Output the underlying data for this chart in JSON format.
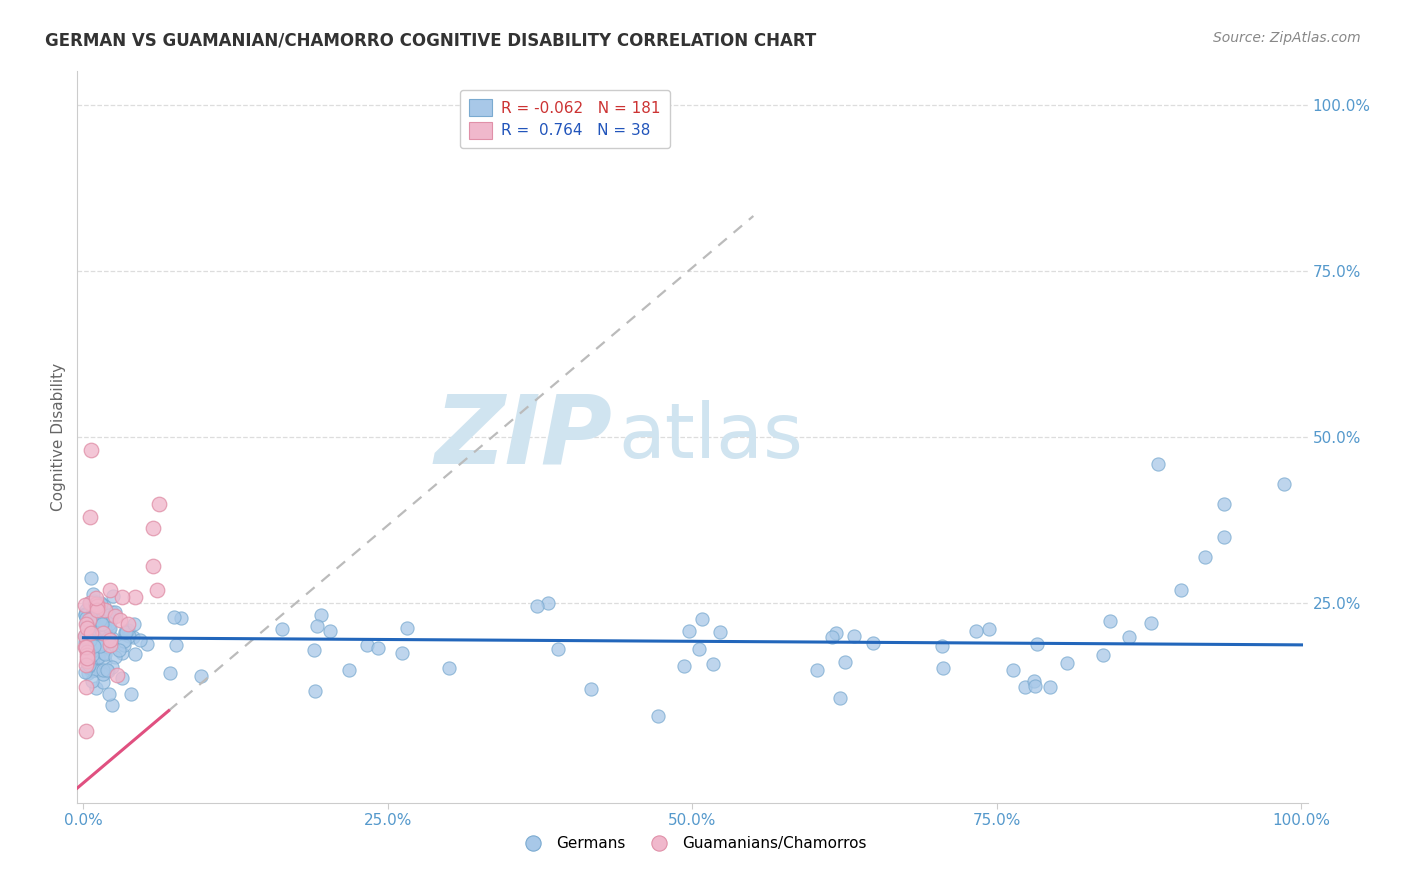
{
  "title": "GERMAN VS GUAMANIAN/CHAMORRO COGNITIVE DISABILITY CORRELATION CHART",
  "source": "Source: ZipAtlas.com",
  "ylabel": "Cognitive Disability",
  "watermark_zip": "ZIP",
  "watermark_atlas": "atlas",
  "german_R": -0.062,
  "german_N": 181,
  "guam_R": 0.764,
  "guam_N": 38,
  "german_color": "#a8c8e8",
  "german_edge_color": "#7aaad0",
  "guam_color": "#f0b8cc",
  "guam_edge_color": "#e090a8",
  "german_line_color": "#2266bb",
  "guam_line_color": "#e05080",
  "dash_ext_color": "#bbbbbb",
  "background_color": "#ffffff",
  "grid_color": "#dddddd",
  "title_color": "#333333",
  "source_color": "#888888",
  "axis_tick_color": "#5599cc",
  "ylabel_color": "#666666",
  "watermark_color": "#d0e4f0",
  "legend_R_blue": "#cc3333",
  "legend_R_pink": "#2255bb",
  "xlim": [
    -0.005,
    1.005
  ],
  "ylim": [
    -0.05,
    1.05
  ],
  "title_fontsize": 12,
  "source_fontsize": 10,
  "axis_fontsize": 11,
  "ylabel_fontsize": 11,
  "legend_fontsize": 11,
  "watermark_fontsize_zip": 70,
  "watermark_fontsize_atlas": 55
}
